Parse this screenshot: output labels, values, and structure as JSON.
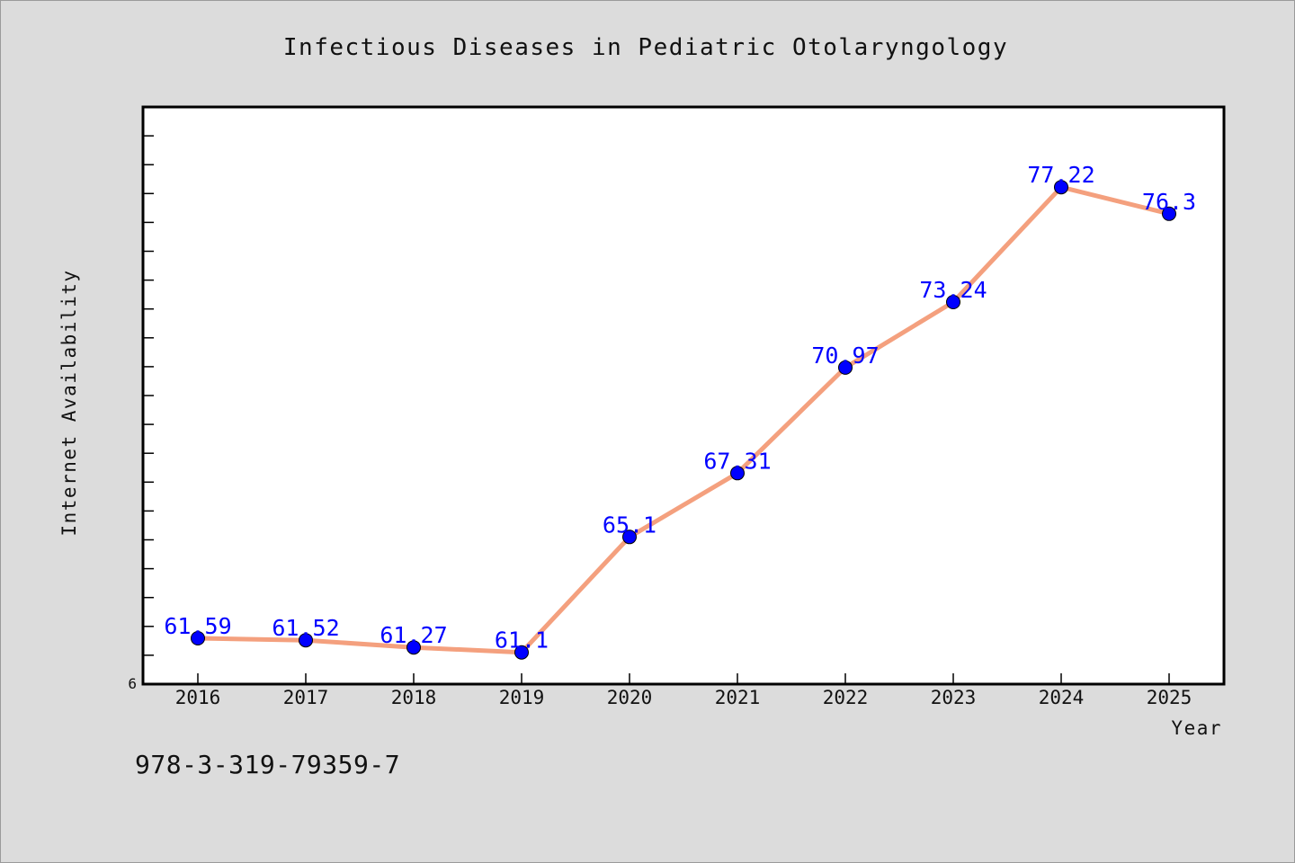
{
  "footer": {
    "text": "978-3-319-79359-7"
  },
  "colors": {
    "background": "#dcdcdc",
    "plot_background": "#ffffff",
    "line": "#f4a07e",
    "marker": "#0000ff",
    "data_label": "#0000ff"
  },
  "chart_data": {
    "type": "line",
    "title": "Infectious Diseases in Pediatric Otolaryngology",
    "xlabel": "Year",
    "ylabel": "Internet Availability",
    "categories": [
      "2016",
      "2017",
      "2018",
      "2019",
      "2020",
      "2021",
      "2022",
      "2023",
      "2024",
      "2025"
    ],
    "series": [
      {
        "values": [
          61.59,
          61.52,
          61.27,
          61.1,
          65.1,
          67.31,
          70.97,
          73.24,
          77.22,
          76.3
        ],
        "labels": [
          "61.59",
          "61.52",
          "61.27",
          "61.1",
          "65.1",
          "67.31",
          "70.97",
          "73.24",
          "77.22",
          "76.3"
        ]
      }
    ],
    "y_tick_labels": [
      "6"
    ],
    "ylim": [
      60,
      80
    ],
    "grid": false,
    "legend": "none"
  }
}
